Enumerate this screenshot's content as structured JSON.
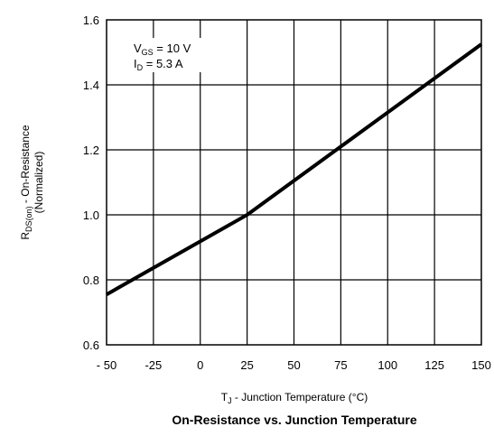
{
  "chart_data": {
    "type": "line",
    "title": "On-Resistance vs. Junction Temperature",
    "xlabel": {
      "main": "T",
      "sub": "J",
      "rest": " - Junction Temperature (°C)"
    },
    "ylabel": {
      "line1_main": "R",
      "line1_sub": "DS(on)",
      "line1_rest": " - On-Resistance",
      "line2": "(Normalized)"
    },
    "xlim": [
      -50,
      150
    ],
    "ylim": [
      0.6,
      1.6
    ],
    "x_ticks": [
      -50,
      -25,
      0,
      25,
      50,
      75,
      100,
      125,
      150
    ],
    "x_tick_labels": [
      "- 50",
      "-25",
      "0",
      "25",
      "50",
      "75",
      "100",
      "125",
      "150"
    ],
    "y_ticks": [
      0.6,
      0.8,
      1.0,
      1.2,
      1.4,
      1.6
    ],
    "y_tick_labels": [
      "0.6",
      "0.8",
      "1.0",
      "1.2",
      "1.4",
      "1.6"
    ],
    "grid": true,
    "annotation": {
      "line1_main": "V",
      "line1_sub": "GS",
      "line1_rest": " = 10 V",
      "line2_main": "I",
      "line2_sub": "D",
      "line2_rest": " = 5.3 A"
    },
    "series": [
      {
        "x": [
          -50,
          25,
          150
        ],
        "y": [
          0.755,
          1.0,
          1.525
        ]
      }
    ]
  }
}
